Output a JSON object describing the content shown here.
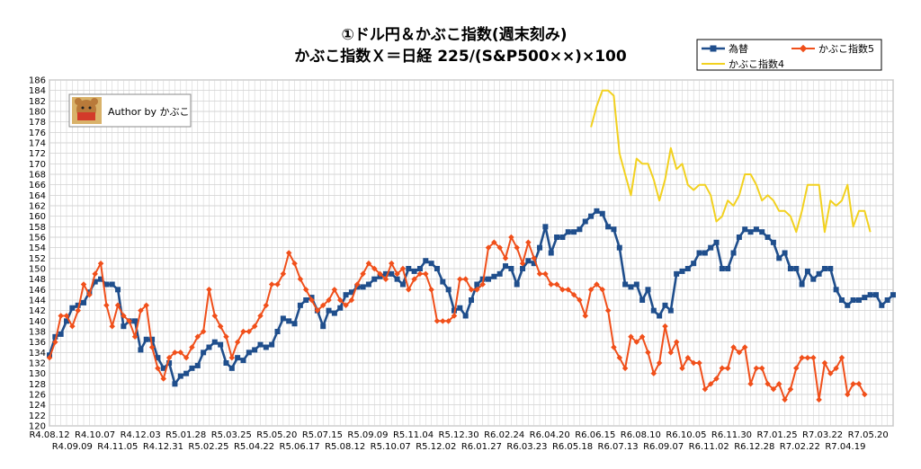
{
  "chart_data": {
    "type": "line",
    "title": "①ドル円＆かぶこ指数(週末刻み)",
    "subtitle": "かぶこ指数Ｘ＝日経 225/(S&P500××)×100",
    "ylim": [
      120,
      186
    ],
    "ytick_step": 2,
    "grid": true,
    "legend_position": "top-right",
    "author_label": "Author by かぶこ",
    "x_labels_top": [
      "R4.08.12",
      "R4.10.07",
      "R4.12.03",
      "R5.01.28",
      "R5.03.25",
      "R5.05.20",
      "R5.07.15",
      "R5.09.09",
      "R5.11.04",
      "R5.12.30",
      "R6.02.24",
      "R6.04.20",
      "R6.06.15",
      "R6.08.10",
      "R6.10.05",
      "R6.11.30",
      "R7.01.25",
      "R7.03.22",
      "R7.05.20"
    ],
    "x_labels_bottom": [
      "R4.09.09",
      "R4.11.05",
      "R4.12.31",
      "R5.02.25",
      "R5.04.22",
      "R5.06.17",
      "R5.08.12",
      "R5.10.07",
      "R5.12.02",
      "R6.01.27",
      "R6.03.23",
      "R6.05.18",
      "R6.07.13",
      "R6.09.07",
      "R6.11.02",
      "R6.12.28",
      "R7.02.22",
      "R7.04.19"
    ],
    "series": [
      {
        "name": "為替",
        "color": "#1f4e8c",
        "marker": "square",
        "start_index": 0,
        "values": [
          133.5,
          137,
          137.5,
          140,
          142.5,
          143,
          143.5,
          145.5,
          147.5,
          148,
          147,
          147,
          146,
          139,
          140,
          140,
          134.5,
          136.5,
          136.5,
          133,
          131,
          132,
          128,
          129.5,
          130,
          131,
          131.5,
          134,
          135,
          136,
          135.5,
          132,
          131,
          133,
          132.5,
          134,
          134.5,
          135.5,
          135,
          135.5,
          138,
          140.5,
          140,
          139.5,
          143,
          144,
          144.5,
          142,
          139,
          142,
          141.5,
          142.5,
          145,
          145.5,
          146.5,
          146.5,
          147,
          148,
          148.5,
          149,
          149,
          148,
          147,
          150,
          149.5,
          150,
          151.5,
          151,
          150,
          147.5,
          146,
          142,
          142.5,
          141,
          144,
          147,
          148,
          148,
          148.5,
          149,
          150.5,
          150,
          147,
          150,
          151.5,
          151,
          154,
          158,
          153,
          156,
          156,
          157,
          157,
          157.5,
          159,
          160,
          161,
          160.5,
          158,
          157.5,
          154,
          147,
          146.5,
          147,
          144,
          146,
          142,
          141,
          143,
          142,
          149,
          149.5,
          150,
          151,
          153,
          153,
          154,
          155,
          150,
          150,
          153,
          156,
          157.5,
          157,
          157.5,
          157,
          156,
          155,
          152,
          153,
          150,
          150,
          147,
          149.5,
          148,
          149,
          150,
          150,
          146,
          144,
          143,
          144,
          144,
          144.5,
          145,
          145,
          143,
          144,
          145
        ]
      },
      {
        "name": "かぶこ指数5",
        "color": "#f04f1a",
        "marker": "diamond",
        "start_index": 0,
        "values": [
          133,
          136,
          141,
          141,
          139,
          142,
          147,
          145,
          149,
          151,
          143,
          139,
          143,
          141,
          140,
          137,
          142,
          143,
          135,
          131,
          129,
          133,
          134,
          134,
          133,
          135,
          137,
          138,
          146,
          141,
          139,
          137,
          133,
          136,
          138,
          138,
          139,
          141,
          143,
          147,
          147,
          149,
          153,
          151,
          148,
          146,
          144,
          142,
          143,
          144,
          146,
          144,
          143,
          144,
          147,
          149,
          151,
          150,
          149,
          148,
          151,
          149,
          150,
          146,
          148,
          149,
          149,
          146,
          140,
          140,
          140,
          141,
          148,
          148,
          146,
          146,
          147,
          154,
          155,
          154,
          152,
          156,
          154,
          151,
          155,
          152,
          149,
          149,
          147,
          147,
          146,
          146,
          145,
          144,
          141,
          146,
          147,
          146,
          142,
          135,
          133,
          131,
          137,
          136,
          137,
          134,
          130,
          132,
          139,
          134,
          136,
          131,
          133,
          132,
          132,
          127,
          128,
          129,
          131,
          131,
          135,
          134,
          135,
          128,
          131,
          131,
          128,
          127,
          128,
          125,
          127,
          131,
          133,
          133,
          133,
          125,
          132,
          130,
          131,
          133,
          126,
          128,
          128,
          126
        ]
      },
      {
        "name": "かぶこ指数4",
        "color": "#f2d11f",
        "marker": "none",
        "start_index": 95,
        "values": [
          177,
          181,
          184,
          184,
          183,
          172,
          168,
          164,
          171,
          170,
          170,
          167,
          163,
          167,
          173,
          169,
          170,
          166,
          165,
          166,
          166,
          164,
          159,
          160,
          163,
          162,
          164,
          168,
          168,
          166,
          163,
          164,
          163,
          161,
          161,
          160,
          157,
          161,
          166,
          166,
          166,
          157,
          163,
          162,
          163,
          166,
          158,
          161,
          161,
          157
        ]
      }
    ]
  }
}
